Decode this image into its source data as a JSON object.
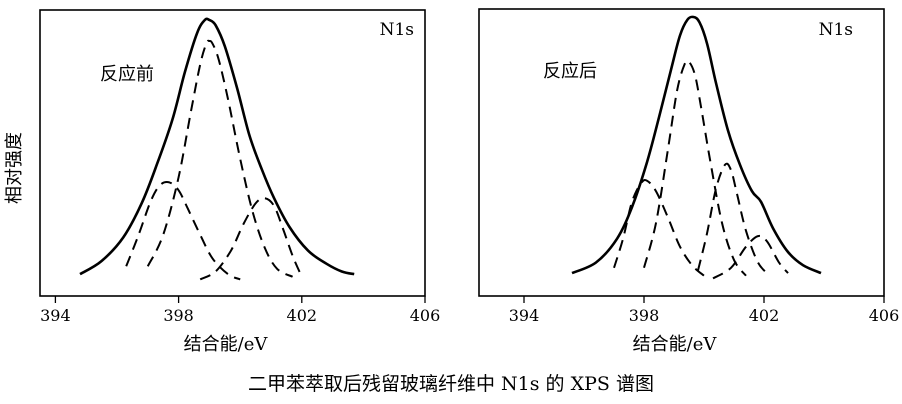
{
  "figure": {
    "caption": "二甲苯萃取后残留玻璃纤维中 N1s 的 XPS 谱图",
    "ylabel": "相对强度"
  },
  "chart_data": [
    {
      "type": "line",
      "title": "N1s",
      "condition_label": "反应前",
      "xlabel": "结合能/eV",
      "ylabel": "相对强度",
      "xlim": [
        393.5,
        406
      ],
      "x_ticks": [
        394,
        398,
        402,
        406
      ],
      "y_ticks": [],
      "grid": false,
      "curves": [
        {
          "role": "envelope",
          "style": "solid",
          "x": [
            394.8,
            395.5,
            396.2,
            396.8,
            397.3,
            397.8,
            398.2,
            398.6,
            398.85,
            399.0,
            399.2,
            399.5,
            399.9,
            400.3,
            400.7,
            401.1,
            401.6,
            402.2,
            402.8,
            403.3,
            403.7
          ],
          "y": [
            0.03,
            0.08,
            0.17,
            0.3,
            0.45,
            0.62,
            0.8,
            0.95,
            1.0,
            1.0,
            0.98,
            0.9,
            0.74,
            0.56,
            0.43,
            0.32,
            0.21,
            0.12,
            0.07,
            0.04,
            0.03
          ]
        },
        {
          "role": "component",
          "style": "dashed",
          "x": [
            397.0,
            397.5,
            398.0,
            398.4,
            398.7,
            398.9,
            399.0,
            399.1,
            399.3,
            399.6,
            400.0,
            400.4,
            400.8,
            401.2,
            401.7
          ],
          "y": [
            0.06,
            0.18,
            0.4,
            0.65,
            0.83,
            0.91,
            0.92,
            0.91,
            0.85,
            0.7,
            0.47,
            0.27,
            0.13,
            0.05,
            0.02
          ]
        },
        {
          "role": "component",
          "style": "dashed",
          "x": [
            396.3,
            396.7,
            397.1,
            397.4,
            397.7,
            398.0,
            398.3,
            398.7,
            399.1,
            399.6,
            400.0
          ],
          "y": [
            0.06,
            0.18,
            0.31,
            0.37,
            0.38,
            0.35,
            0.28,
            0.18,
            0.09,
            0.03,
            0.01
          ]
        },
        {
          "role": "component",
          "style": "dashed",
          "x": [
            398.7,
            399.2,
            399.7,
            400.1,
            400.5,
            400.8,
            401.1,
            401.4,
            401.7,
            402.0
          ],
          "y": [
            0.01,
            0.04,
            0.12,
            0.22,
            0.3,
            0.32,
            0.29,
            0.2,
            0.1,
            0.02
          ]
        }
      ]
    },
    {
      "type": "line",
      "title": "N1s",
      "condition_label": "反应后",
      "xlabel": "结合能/eV",
      "ylabel": "相对强度",
      "xlim": [
        392.5,
        406
      ],
      "x_ticks": [
        394,
        398,
        402,
        406
      ],
      "y_ticks": [],
      "grid": false,
      "curves": [
        {
          "role": "envelope",
          "style": "solid",
          "x": [
            395.6,
            396.4,
            397.1,
            397.6,
            398.1,
            398.5,
            398.9,
            399.2,
            399.45,
            399.65,
            399.85,
            400.1,
            400.4,
            400.8,
            401.2,
            401.6,
            401.9,
            402.3,
            402.8,
            403.3,
            403.9
          ],
          "y": [
            0.03,
            0.07,
            0.16,
            0.28,
            0.45,
            0.62,
            0.8,
            0.93,
            0.99,
            1.0,
            0.98,
            0.9,
            0.75,
            0.57,
            0.44,
            0.34,
            0.3,
            0.2,
            0.11,
            0.06,
            0.03
          ]
        },
        {
          "role": "component",
          "style": "dashed",
          "x": [
            398.0,
            398.4,
            398.8,
            399.1,
            399.35,
            399.5,
            399.7,
            399.9,
            400.2,
            400.6,
            401.0,
            401.4
          ],
          "y": [
            0.05,
            0.22,
            0.5,
            0.72,
            0.82,
            0.83,
            0.78,
            0.66,
            0.46,
            0.22,
            0.08,
            0.02
          ]
        },
        {
          "role": "component",
          "style": "dashed",
          "x": [
            397.0,
            397.3,
            397.6,
            397.9,
            398.1,
            398.4,
            398.8,
            399.2,
            399.6,
            400.0
          ],
          "y": [
            0.05,
            0.16,
            0.3,
            0.37,
            0.38,
            0.34,
            0.24,
            0.13,
            0.06,
            0.02
          ]
        },
        {
          "role": "component",
          "style": "dashed",
          "x": [
            399.8,
            400.1,
            400.4,
            400.7,
            400.9,
            401.1,
            401.4,
            401.8,
            402.2
          ],
          "y": [
            0.04,
            0.18,
            0.35,
            0.44,
            0.42,
            0.33,
            0.19,
            0.07,
            0.02
          ]
        },
        {
          "role": "component",
          "style": "dashed",
          "x": [
            400.3,
            400.9,
            401.4,
            401.8,
            402.1,
            402.5,
            402.8
          ],
          "y": [
            0.01,
            0.05,
            0.13,
            0.17,
            0.15,
            0.07,
            0.03
          ]
        }
      ]
    }
  ]
}
